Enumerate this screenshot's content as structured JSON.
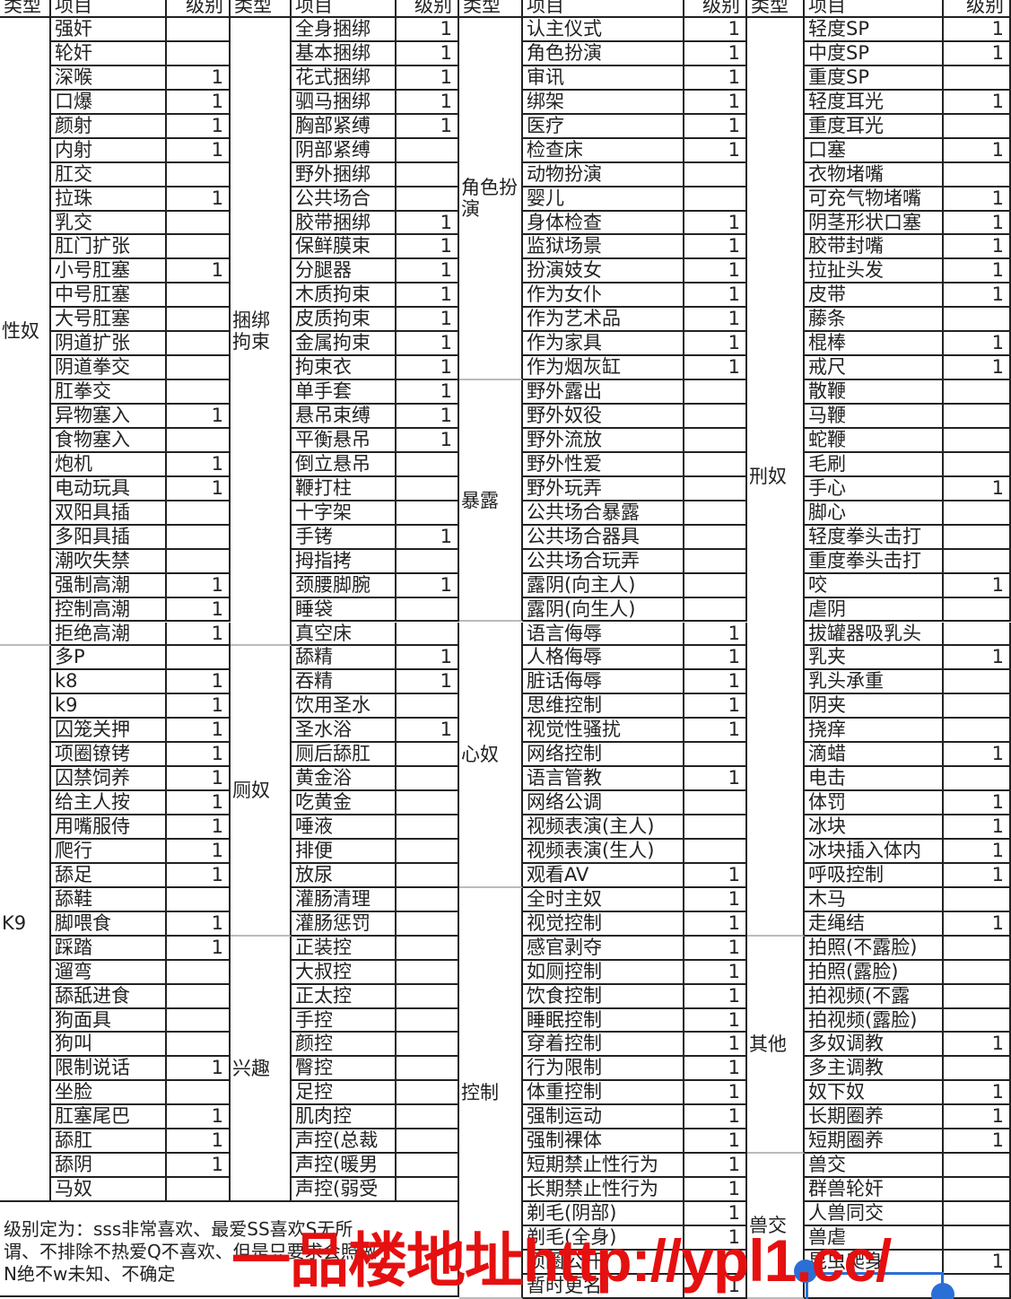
{
  "headers": {
    "type": "类型",
    "item": "项目",
    "level": "级别"
  },
  "groups": [
    {
      "sections": [
        {
          "type": "性奴",
          "items": [
            [
              "强奸",
              ""
            ],
            [
              "轮奸",
              ""
            ],
            [
              "深喉",
              "1"
            ],
            [
              "口爆",
              "1"
            ],
            [
              "颜射",
              "1"
            ],
            [
              "内射",
              "1"
            ],
            [
              "肛交",
              ""
            ],
            [
              "拉珠",
              "1"
            ],
            [
              "乳交",
              ""
            ],
            [
              "肛门扩张",
              ""
            ],
            [
              "小号肛塞",
              "1"
            ],
            [
              "中号肛塞",
              ""
            ],
            [
              "大号肛塞",
              ""
            ],
            [
              "阴道扩张",
              ""
            ],
            [
              "阴道拳交",
              ""
            ],
            [
              "肛拳交",
              ""
            ],
            [
              "异物塞入",
              "1"
            ],
            [
              "食物塞入",
              ""
            ],
            [
              "炮机",
              "1"
            ],
            [
              "电动玩具",
              "1"
            ],
            [
              "双阳具插",
              ""
            ],
            [
              "多阳具插",
              ""
            ],
            [
              "潮吹失禁",
              ""
            ],
            [
              "强制高潮",
              "1"
            ],
            [
              "控制高潮",
              "1"
            ],
            [
              "拒绝高潮",
              "1"
            ]
          ]
        },
        {
          "type": "K9",
          "items": [
            [
              "多P",
              ""
            ],
            [
              "k8",
              "1"
            ],
            [
              "k9",
              "1"
            ],
            [
              "囚笼关押",
              "1"
            ],
            [
              "项圈镣铐",
              "1"
            ],
            [
              "囚禁饲养",
              "1"
            ],
            [
              "给主人按",
              "1"
            ],
            [
              "用嘴服侍",
              "1"
            ],
            [
              "爬行",
              "1"
            ],
            [
              "舔足",
              "1"
            ],
            [
              "舔鞋",
              ""
            ],
            [
              "脚喂食",
              "1"
            ],
            [
              "踩踏",
              "1"
            ],
            [
              "遛弯",
              ""
            ],
            [
              "舔舐进食",
              ""
            ],
            [
              "狗面具",
              ""
            ],
            [
              "狗叫",
              ""
            ],
            [
              "限制说话",
              "1"
            ],
            [
              "坐脸",
              ""
            ],
            [
              "肛塞尾巴",
              "1"
            ],
            [
              "舔肛",
              "1"
            ],
            [
              "舔阴",
              "1"
            ],
            [
              "马奴",
              ""
            ]
          ]
        }
      ]
    },
    {
      "sections": [
        {
          "type": "捆绑拘束",
          "items": [
            [
              "全身捆绑",
              "1"
            ],
            [
              "基本捆绑",
              "1"
            ],
            [
              "花式捆绑",
              "1"
            ],
            [
              "驷马捆绑",
              "1"
            ],
            [
              "胸部紧缚",
              "1"
            ],
            [
              "阴部紧缚",
              ""
            ],
            [
              "野外捆绑",
              ""
            ],
            [
              "公共场合",
              ""
            ],
            [
              "胶带捆绑",
              "1"
            ],
            [
              "保鲜膜束",
              "1"
            ],
            [
              "分腿器",
              "1"
            ],
            [
              "木质拘束",
              "1"
            ],
            [
              "皮质拘束",
              "1"
            ],
            [
              "金属拘束",
              "1"
            ],
            [
              "拘束衣",
              "1"
            ],
            [
              "单手套",
              "1"
            ],
            [
              "悬吊束缚",
              "1"
            ],
            [
              "平衡悬吊",
              "1"
            ],
            [
              "倒立悬吊",
              ""
            ],
            [
              "鞭打柱",
              ""
            ],
            [
              "十字架",
              ""
            ],
            [
              "手铐",
              "1"
            ],
            [
              "拇指拷",
              ""
            ],
            [
              "颈腰脚腕",
              "1"
            ],
            [
              "睡袋",
              ""
            ],
            [
              "真空床",
              ""
            ]
          ]
        },
        {
          "type": "厕奴",
          "items": [
            [
              "舔精",
              "1"
            ],
            [
              "吞精",
              "1"
            ],
            [
              "饮用圣水",
              ""
            ],
            [
              "圣水浴",
              "1"
            ],
            [
              "厕后舔肛",
              ""
            ],
            [
              "黄金浴",
              ""
            ],
            [
              "吃黄金",
              ""
            ],
            [
              "唾液",
              ""
            ],
            [
              "排便",
              ""
            ],
            [
              "放尿",
              ""
            ],
            [
              "灌肠清理",
              ""
            ],
            [
              "灌肠惩罚",
              ""
            ]
          ]
        },
        {
          "type": "兴趣",
          "items": [
            [
              "正装控",
              ""
            ],
            [
              "大叔控",
              ""
            ],
            [
              "正太控",
              ""
            ],
            [
              "手控",
              ""
            ],
            [
              "颜控",
              ""
            ],
            [
              "臀控",
              ""
            ],
            [
              "足控",
              ""
            ],
            [
              "肌肉控",
              ""
            ],
            [
              "声控(总裁",
              ""
            ],
            [
              "声控(暖男",
              ""
            ],
            [
              "声控(弱受",
              ""
            ]
          ]
        }
      ]
    },
    {
      "sections": [
        {
          "type": "角色扮演",
          "items": [
            [
              "认主仪式",
              "1"
            ],
            [
              "角色扮演",
              "1"
            ],
            [
              "审讯",
              "1"
            ],
            [
              "绑架",
              "1"
            ],
            [
              "医疗",
              "1"
            ],
            [
              "检查床",
              "1"
            ],
            [
              "动物扮演",
              ""
            ],
            [
              "婴儿",
              ""
            ],
            [
              "身体检查",
              "1"
            ],
            [
              "监狱场景",
              "1"
            ],
            [
              "扮演妓女",
              "1"
            ],
            [
              "作为女仆",
              "1"
            ],
            [
              "作为艺术品",
              "1"
            ],
            [
              "作为家具",
              "1"
            ],
            [
              "作为烟灰缸",
              "1"
            ]
          ]
        },
        {
          "type": "暴露",
          "items": [
            [
              "野外露出",
              ""
            ],
            [
              "野外奴役",
              ""
            ],
            [
              "野外流放",
              ""
            ],
            [
              "野外性爱",
              ""
            ],
            [
              "野外玩弄",
              ""
            ],
            [
              "公共场合暴露",
              ""
            ],
            [
              "公共场合器具",
              ""
            ],
            [
              "公共场合玩弄",
              ""
            ],
            [
              "露阴(向主人)",
              ""
            ],
            [
              "露阴(向生人)",
              ""
            ]
          ]
        },
        {
          "type": "心奴",
          "items": [
            [
              "语言侮辱",
              "1"
            ],
            [
              "人格侮辱",
              "1"
            ],
            [
              "脏话侮辱",
              "1"
            ],
            [
              "思维控制",
              "1"
            ],
            [
              "视觉性骚扰",
              "1"
            ],
            [
              "网络控制",
              ""
            ],
            [
              "语言管教",
              "1"
            ],
            [
              "网络公调",
              ""
            ],
            [
              "视频表演(主人)",
              ""
            ],
            [
              "视频表演(生人)",
              ""
            ],
            [
              "观看AV",
              "1"
            ]
          ]
        },
        {
          "type": "控制",
          "items": [
            [
              "全时主奴",
              "1"
            ],
            [
              "视觉控制",
              "1"
            ],
            [
              "感官剥夺",
              "1"
            ],
            [
              "如厕控制",
              "1"
            ],
            [
              "饮食控制",
              "1"
            ],
            [
              "睡眠控制",
              "1"
            ],
            [
              "穿着控制",
              "1"
            ],
            [
              "行为限制",
              "1"
            ],
            [
              "体重控制",
              "1"
            ],
            [
              "强制运动",
              "1"
            ],
            [
              "强制裸体",
              "1"
            ],
            [
              "短期禁止性行为",
              "1"
            ],
            [
              "长期禁止性行为",
              "1"
            ],
            [
              "剃毛(阴部)",
              "1"
            ],
            [
              "剃毛(全身)",
              "1"
            ],
            [
              "项圈公开",
              ""
            ],
            [
              "暂时更名",
              "1"
            ]
          ]
        }
      ]
    },
    {
      "sections": [
        {
          "type": "刑奴",
          "items": [
            [
              "轻度SP",
              "1"
            ],
            [
              "中度SP",
              "1"
            ],
            [
              "重度SP",
              ""
            ],
            [
              "轻度耳光",
              "1"
            ],
            [
              "重度耳光",
              ""
            ],
            [
              "口塞",
              "1"
            ],
            [
              "衣物堵嘴",
              ""
            ],
            [
              "可充气物堵嘴",
              "1"
            ],
            [
              "阴茎形状口塞",
              "1"
            ],
            [
              "胶带封嘴",
              "1"
            ],
            [
              "拉扯头发",
              "1"
            ],
            [
              "皮带",
              "1"
            ],
            [
              "藤条",
              ""
            ],
            [
              "棍棒",
              "1"
            ],
            [
              "戒尺",
              "1"
            ],
            [
              "散鞭",
              ""
            ],
            [
              "马鞭",
              ""
            ],
            [
              "蛇鞭",
              ""
            ],
            [
              "毛刷",
              ""
            ],
            [
              "手心",
              "1"
            ],
            [
              "脚心",
              ""
            ],
            [
              "轻度拳头击打",
              ""
            ],
            [
              "重度拳头击打",
              ""
            ],
            [
              "咬",
              "1"
            ],
            [
              "虐阴",
              ""
            ],
            [
              "拔罐器吸乳头",
              ""
            ],
            [
              "乳夹",
              "1"
            ],
            [
              "乳头承重",
              ""
            ],
            [
              "阴夹",
              ""
            ],
            [
              "挠痒",
              ""
            ],
            [
              "滴蜡",
              "1"
            ],
            [
              "电击",
              ""
            ],
            [
              "体罚",
              "1"
            ],
            [
              "冰块",
              "1"
            ],
            [
              "冰块插入体内",
              "1"
            ],
            [
              "呼吸控制",
              "1"
            ],
            [
              "木马",
              ""
            ],
            [
              "走绳结",
              "1"
            ]
          ]
        },
        {
          "type": "其他",
          "items": [
            [
              "拍照(不露脸)",
              ""
            ],
            [
              "拍照(露脸)",
              ""
            ],
            [
              "拍视频(不露",
              ""
            ],
            [
              "拍视频(露脸)",
              ""
            ],
            [
              "多奴调教",
              "1"
            ],
            [
              "多主调教",
              ""
            ],
            [
              "奴下奴",
              "1"
            ],
            [
              "长期圈养",
              "1"
            ],
            [
              "短期圈养",
              "1"
            ]
          ]
        },
        {
          "type": "兽交",
          "items": [
            [
              "兽交",
              ""
            ],
            [
              "群兽轮奸",
              ""
            ],
            [
              "人兽同交",
              ""
            ],
            [
              "兽虐",
              ""
            ],
            [
              "昆虫爬身",
              "1"
            ],
            [
              "",
              ""
            ]
          ]
        }
      ]
    }
  ],
  "note": {
    "line1": "级别定为：sss非常喜欢、最爱SS喜欢S无所",
    "line2": "谓、不排除不热爱Q不喜欢、但是只要求会照做",
    "line3": "N绝不w未知、不确定"
  },
  "watermark": "一品楼地址http://ypl1.cc/",
  "colors": {
    "watermark": "#e51010",
    "selection": "#2a6fd6"
  }
}
